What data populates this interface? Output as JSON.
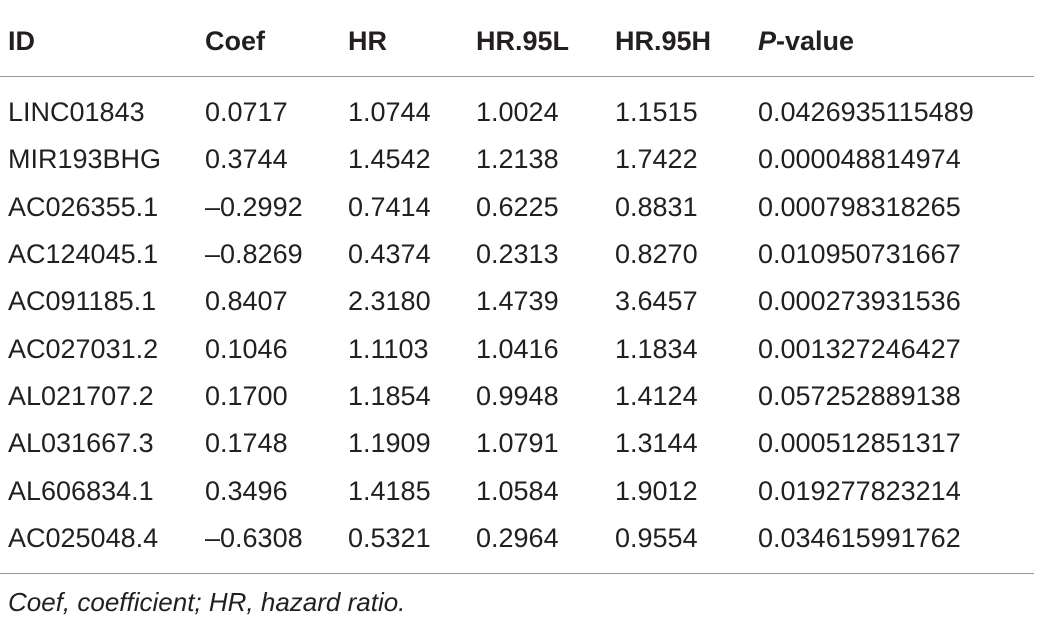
{
  "table": {
    "headers": {
      "id": "ID",
      "coef": "Coef",
      "hr": "HR",
      "hr95l": "HR.95L",
      "hr95h": "HR.95H",
      "p_italic": "P",
      "p_rest": "-value"
    },
    "rows": [
      [
        "LINC01843",
        "0.0717",
        "1.0744",
        "1.0024",
        "1.1515",
        "0.0426935115489"
      ],
      [
        "MIR193BHG",
        "0.3744",
        "1.4542",
        "1.2138",
        "1.7422",
        "0.000048814974"
      ],
      [
        "AC026355.1",
        "–0.2992",
        "0.7414",
        "0.6225",
        "0.8831",
        "0.000798318265"
      ],
      [
        "AC124045.1",
        "–0.8269",
        "0.4374",
        "0.2313",
        "0.8270",
        "0.010950731667"
      ],
      [
        "AC091185.1",
        "0.8407",
        "2.3180",
        "1.4739",
        "3.6457",
        "0.000273931536"
      ],
      [
        "AC027031.2",
        "0.1046",
        "1.1103",
        "1.0416",
        "1.1834",
        "0.001327246427"
      ],
      [
        "AL021707.2",
        "0.1700",
        "1.1854",
        "0.9948",
        "1.4124",
        "0.057252889138"
      ],
      [
        "AL031667.3",
        "0.1748",
        "1.1909",
        "1.0791",
        "1.3144",
        "0.000512851317"
      ],
      [
        "AL606834.1",
        "0.3496",
        "1.4185",
        "1.0584",
        "1.9012",
        "0.019277823214"
      ],
      [
        "AC025048.4",
        "–0.6308",
        "0.5321",
        "0.2964",
        "0.9554",
        "0.034615991762"
      ]
    ]
  },
  "footnote": "Coef, coefficient; HR, hazard ratio."
}
